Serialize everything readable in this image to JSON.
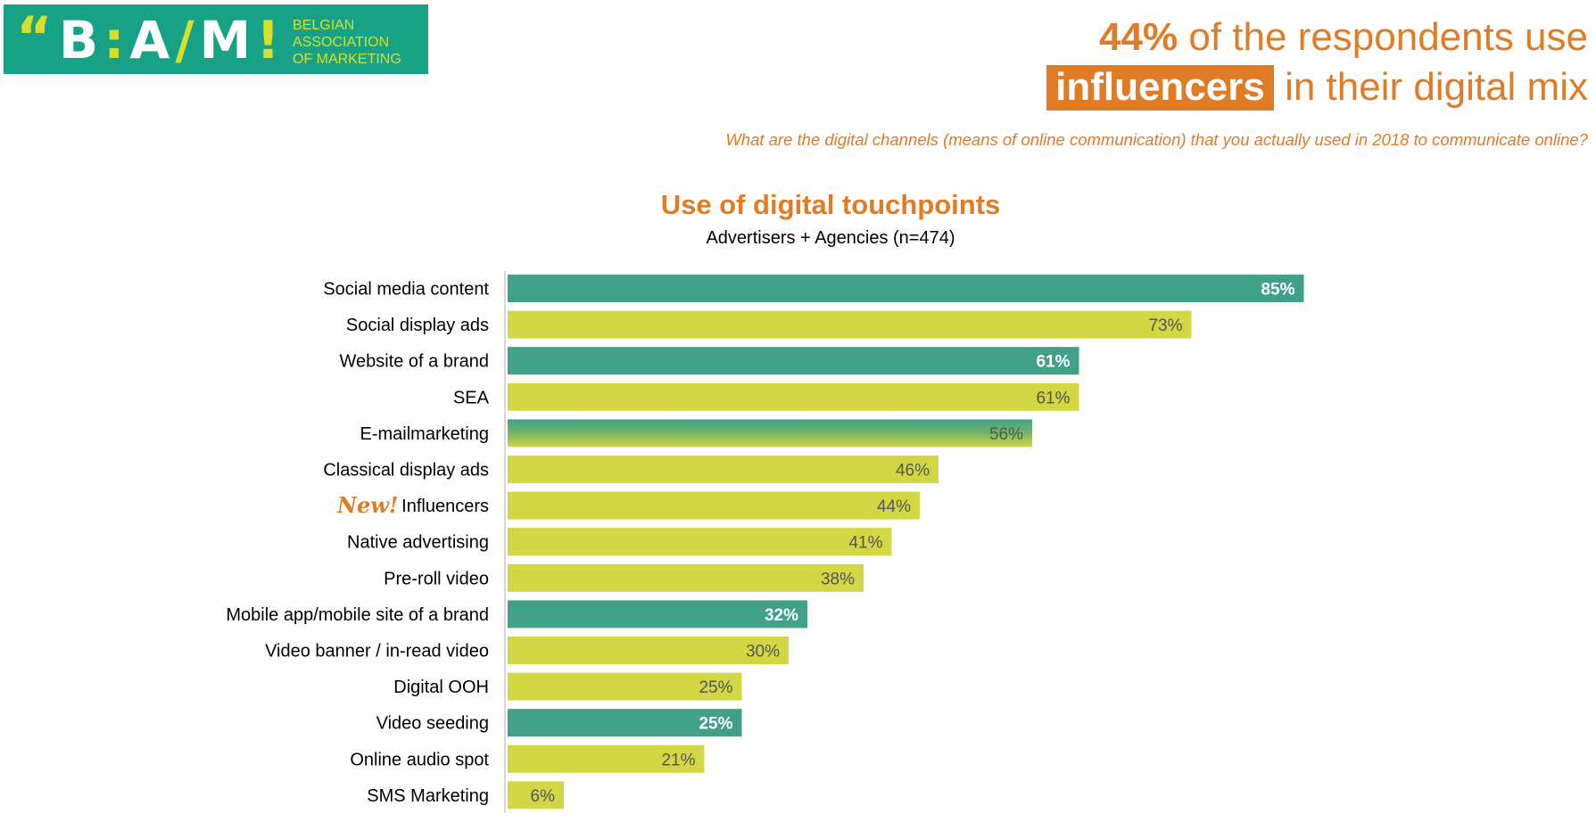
{
  "logo": {
    "quote": "“",
    "letters": [
      "B",
      ":",
      "A",
      "/",
      "M",
      "!"
    ],
    "name_lines": [
      "BELGIAN",
      "ASSOCIATION",
      "OF MARKETING"
    ]
  },
  "headline": {
    "line1_pct": "44%",
    "line1_rest": " of the respondents use",
    "line2_highlight": "influencers",
    "line2_rest": " in their digital mix"
  },
  "question": "What are the digital channels (means of online communication) that you actually used in 2018 to communicate online?",
  "colors": {
    "teal": "#40a088",
    "yellow": "#d2d743",
    "orange": "#e07b26",
    "logo_bg": "#17a288"
  },
  "chart_data": {
    "type": "bar",
    "orientation": "horizontal",
    "title": "Use of digital touchpoints",
    "subtitle": "Advertisers + Agencies (n=474)",
    "unit": "%",
    "xlim": [
      0,
      100
    ],
    "grid": false,
    "new_tag": "New!",
    "categories": [
      "Social media content",
      "Social display ads",
      "Website of a brand",
      "SEA",
      "E-mailmarketing",
      "Classical display ads",
      "Influencers",
      "Native advertising",
      "Pre-roll video",
      "Mobile app/mobile site of a brand",
      "Video banner / in-read video",
      "Digital OOH ",
      "Video seeding",
      "Online audio spot",
      "SMS Marketing "
    ],
    "values": [
      85,
      73,
      61,
      61,
      56,
      46,
      44,
      41,
      38,
      32,
      30,
      25,
      25,
      21,
      6
    ],
    "labels": [
      "85%",
      "73%",
      "61%",
      "61%",
      "56%",
      "46%",
      "44%",
      "41%",
      "38%",
      "32%",
      "30%",
      "25%",
      "25%",
      "21%",
      "6%"
    ],
    "bar_style": [
      "teal",
      "yellow",
      "teal",
      "yellow",
      "gradient",
      "yellow",
      "yellow",
      "yellow",
      "yellow",
      "teal",
      "yellow",
      "yellow",
      "teal",
      "yellow",
      "yellow"
    ],
    "new_category": "Influencers"
  }
}
